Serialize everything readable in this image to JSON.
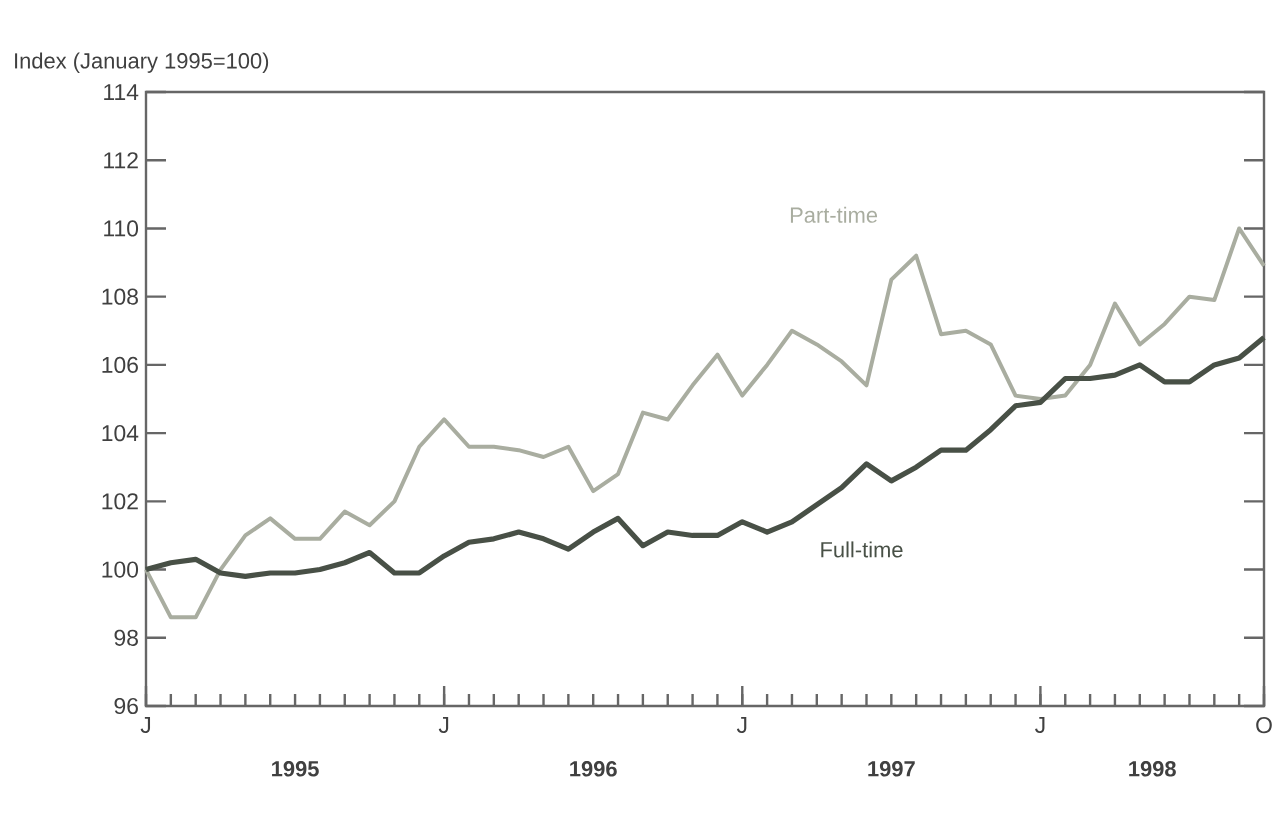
{
  "chart_data": {
    "type": "line",
    "ylabel": "Index (January 1995=100)",
    "categories": [
      "J",
      null,
      null,
      null,
      null,
      null,
      null,
      null,
      null,
      null,
      null,
      null,
      "J",
      null,
      null,
      null,
      null,
      null,
      null,
      null,
      null,
      null,
      null,
      null,
      "J",
      null,
      null,
      null,
      null,
      null,
      null,
      null,
      null,
      null,
      null,
      null,
      "J",
      null,
      null,
      null,
      null,
      null,
      null,
      null,
      null,
      "O"
    ],
    "series": [
      {
        "name": "Part-time",
        "color": "#a9ada0",
        "values": [
          100.0,
          98.6,
          98.6,
          100.0,
          101.0,
          101.5,
          100.9,
          100.9,
          101.7,
          101.3,
          102.0,
          103.6,
          104.4,
          103.6,
          103.6,
          103.5,
          103.3,
          103.6,
          102.3,
          102.8,
          104.6,
          104.4,
          105.4,
          106.3,
          105.1,
          106.0,
          107.0,
          106.6,
          106.1,
          105.4,
          108.5,
          109.2,
          106.9,
          107.0,
          106.6,
          105.1,
          105.0,
          105.1,
          106.0,
          107.8,
          106.6,
          107.2,
          108.0,
          107.9,
          110.0,
          108.9
        ]
      },
      {
        "name": "Full-time",
        "color": "#485046",
        "values": [
          100.0,
          100.2,
          100.3,
          99.9,
          99.8,
          99.9,
          99.9,
          100.0,
          100.2,
          100.5,
          99.9,
          99.9,
          100.4,
          100.8,
          100.9,
          101.1,
          100.9,
          100.6,
          101.1,
          101.5,
          100.7,
          101.1,
          101.0,
          101.0,
          101.4,
          101.1,
          101.4,
          101.9,
          102.4,
          103.1,
          102.6,
          103.0,
          103.5,
          103.5,
          104.1,
          104.8,
          104.9,
          105.6,
          105.6,
          105.7,
          106.0,
          105.5,
          105.5,
          106.0,
          106.2,
          106.8
        ]
      }
    ],
    "ylim": [
      96,
      114
    ],
    "yticks": [
      96,
      98,
      100,
      102,
      104,
      106,
      108,
      110,
      112,
      114
    ],
    "annotations": [
      "1995",
      "1996",
      "1997",
      "1998"
    ],
    "grid": false,
    "legend": false,
    "marker": "none",
    "line_style": "solid"
  }
}
